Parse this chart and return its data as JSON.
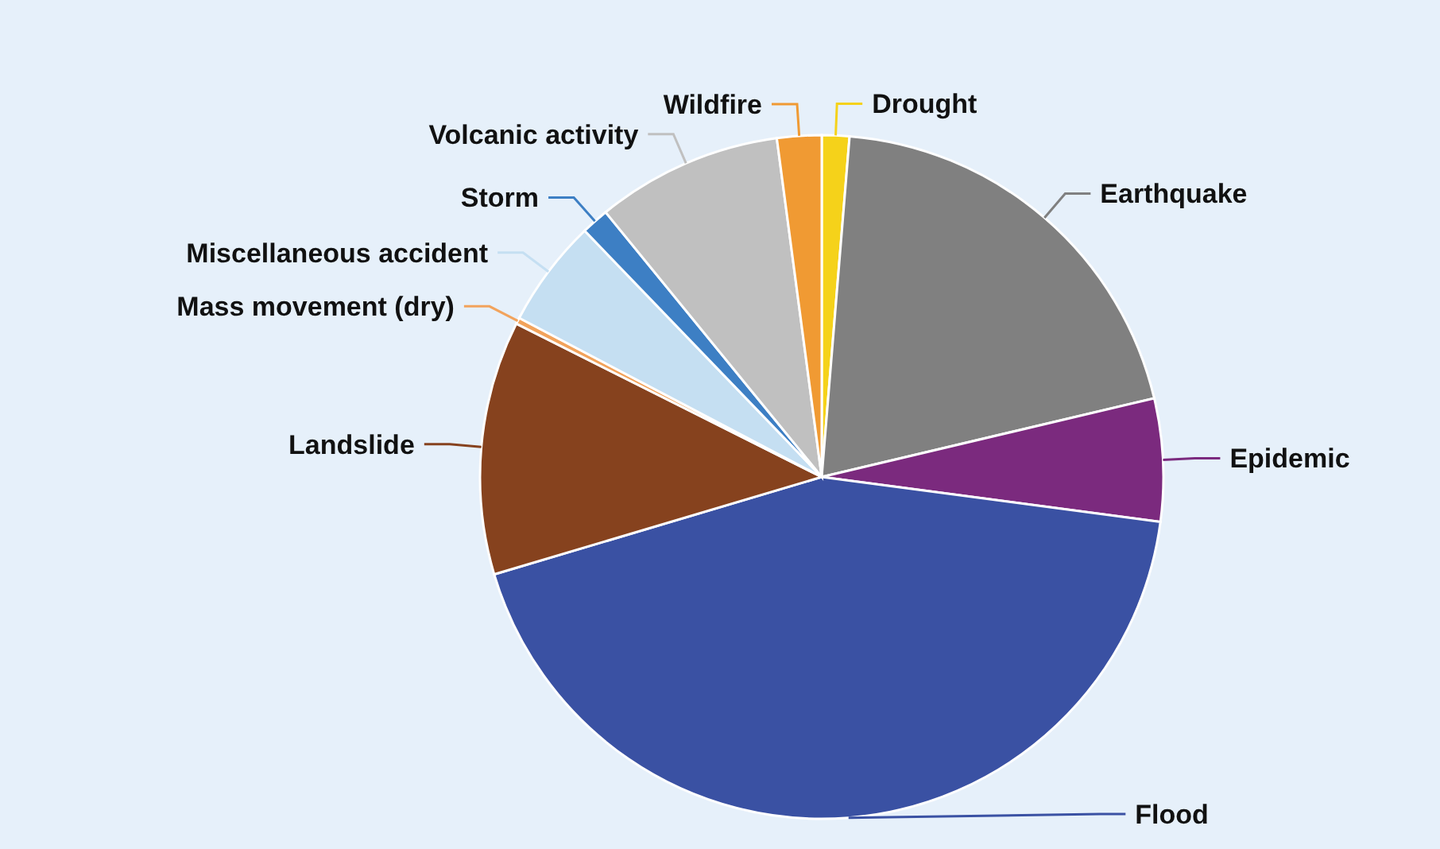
{
  "chart_data": {
    "type": "pie",
    "categories": [
      "Drought",
      "Earthquake",
      "Epidemic",
      "Flood",
      "Landslide",
      "Mass movement (dry)",
      "Miscellaneous accident",
      "Storm",
      "Volcanic activity",
      "Wildfire"
    ],
    "values": [
      1.3,
      20,
      5.8,
      43.3,
      12,
      0.3,
      5.1,
      1.3,
      8.8,
      2.1
    ],
    "colors": [
      "#f5d21a",
      "#808080",
      "#7b2a7e",
      "#3a51a3",
      "#86421e",
      "#f2a35c",
      "#c5dff2",
      "#3d7fc4",
      "#c0c0c0",
      "#f09a33"
    ]
  }
}
